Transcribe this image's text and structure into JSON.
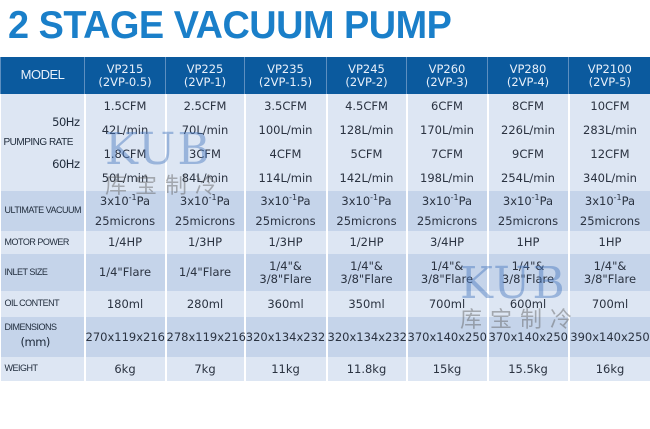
{
  "title": "2 STAGE VACUUM PUMP",
  "header": {
    "label": "MODEL",
    "models": [
      {
        "name": "VP215",
        "code": "(2VP-0.5)"
      },
      {
        "name": "VP225",
        "code": "(2VP-1)"
      },
      {
        "name": "VP235",
        "code": "(2VP-1.5)"
      },
      {
        "name": "VP245",
        "code": "(2VP-2)"
      },
      {
        "name": "VP260",
        "code": "(2VP-3)"
      },
      {
        "name": "VP280",
        "code": "(2VP-4)"
      },
      {
        "name": "VP2100",
        "code": "(2VP-5)"
      }
    ]
  },
  "pumping_rate": {
    "label": "PUMPING RATE",
    "hz50": "50Hz",
    "hz60": "60Hz",
    "cfm50": [
      "1.5CFM",
      "2.5CFM",
      "3.5CFM",
      "4.5CFM",
      "6CFM",
      "8CFM",
      "10CFM"
    ],
    "lmin50": [
      "42L/min",
      "70L/min",
      "100L/min",
      "128L/min",
      "170L/min",
      "226L/min",
      "283L/min"
    ],
    "cfm60": [
      "1.8CFM",
      "3CFM",
      "4CFM",
      "5CFM",
      "7CFM",
      "9CFM",
      "12CFM"
    ],
    "lmin60": [
      "50L/min",
      "84L/min",
      "114L/min",
      "142L/min",
      "198L/min",
      "254L/min",
      "340L/min"
    ]
  },
  "ultimate_vacuum": {
    "label": "ULTIMATE VACUUM",
    "pa_base": "3x10",
    "pa_exp": "-1",
    "pa_unit": "Pa",
    "microns": [
      "25microns",
      "25microns",
      "25microns",
      "25microns",
      "25microns",
      "25microns",
      "25microns"
    ]
  },
  "motor_power": {
    "label": "MOTOR POWER",
    "values": [
      "1/4HP",
      "1/3HP",
      "1/3HP",
      "1/2HP",
      "3/4HP",
      "1HP",
      "1HP"
    ]
  },
  "inlet_size": {
    "label": "INLET SIZE",
    "line1": [
      "1/4\"Flare",
      "1/4\"Flare",
      "1/4\"&",
      "1/4\"&",
      "1/4\"&",
      "1/4\"&",
      "1/4\"&"
    ],
    "line2": [
      "",
      "",
      "3/8\"Flare",
      "3/8\"Flare",
      "3/8\"Flare",
      "3/8\"Flare",
      "3/8\"Flare"
    ]
  },
  "oil_content": {
    "label": "OIL CONTENT",
    "values": [
      "180ml",
      "280ml",
      "360ml",
      "350ml",
      "700ml",
      "600ml",
      "700ml"
    ]
  },
  "dimensions": {
    "label": "DIMENSIONS",
    "unit": "(mm)",
    "values": [
      "270x119x216",
      "278x119x216",
      "320x134x232",
      "320x134x232",
      "370x140x250",
      "370x140x250",
      "390x140x250"
    ]
  },
  "weight": {
    "label": "WEIGHT",
    "values": [
      "6kg",
      "7kg",
      "11kg",
      "11.8kg",
      "15kg",
      "15.5kg",
      "16kg"
    ]
  },
  "watermark": {
    "logo": "KUB",
    "mark": "®",
    "chinese": "库宝制冷"
  }
}
